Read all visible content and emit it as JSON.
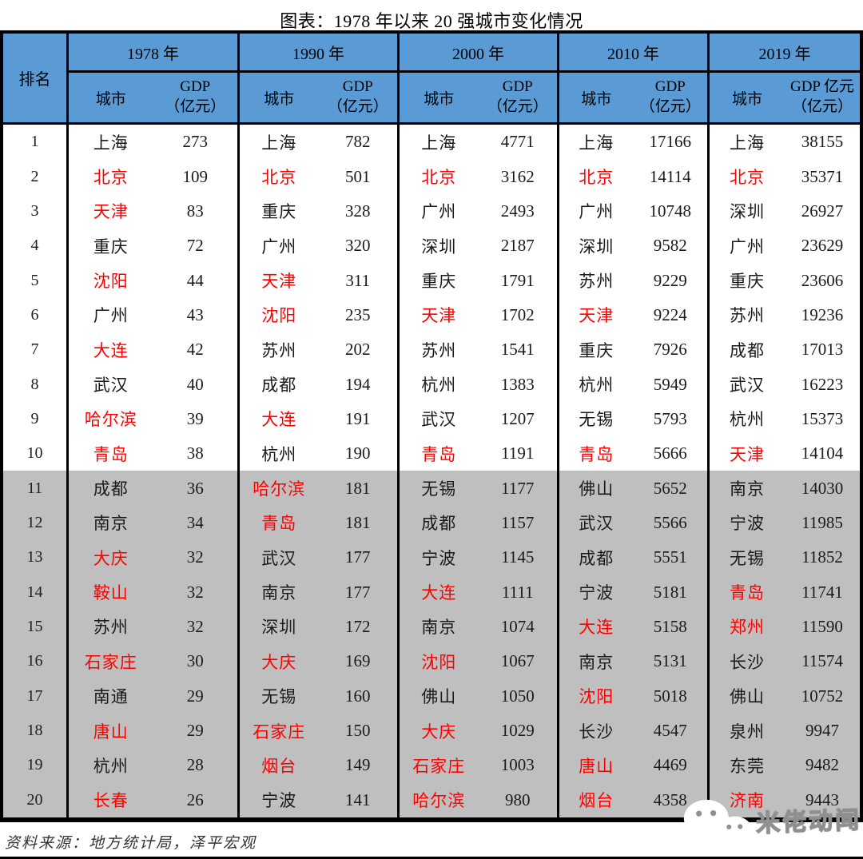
{
  "title": "图表：1978 年以来 20 强城市变化情况",
  "footer": {
    "source": "资料来源：地方统计局，泽平宏观"
  },
  "watermark": {
    "text": "米佬动闻",
    "icon": "wechat-logo"
  },
  "colors": {
    "header_bg": "#5B9BD5",
    "grid_line": "#000000",
    "lower_band_bg": "#BFBFBF",
    "highlight_red": "#FF0000",
    "text_black": "#1a1a1a"
  },
  "table": {
    "rank_header": "排名",
    "city_header": "城市",
    "ranks": [
      "1",
      "2",
      "3",
      "4",
      "5",
      "6",
      "7",
      "8",
      "9",
      "10",
      "11",
      "12",
      "13",
      "14",
      "15",
      "16",
      "17",
      "18",
      "19",
      "20"
    ],
    "year_groups": [
      {
        "year": "1978 年",
        "city_header": "城市",
        "gdp_line1": "GDP",
        "gdp_line2": "（亿元）",
        "rows": [
          {
            "city": "上海",
            "gdp": "273",
            "red": false
          },
          {
            "city": "北京",
            "gdp": "109",
            "red": true
          },
          {
            "city": "天津",
            "gdp": "83",
            "red": true
          },
          {
            "city": "重庆",
            "gdp": "72",
            "red": false
          },
          {
            "city": "沈阳",
            "gdp": "44",
            "red": true
          },
          {
            "city": "广州",
            "gdp": "43",
            "red": false
          },
          {
            "city": "大连",
            "gdp": "42",
            "red": true
          },
          {
            "city": "武汉",
            "gdp": "40",
            "red": false
          },
          {
            "city": "哈尔滨",
            "gdp": "39",
            "red": true
          },
          {
            "city": "青岛",
            "gdp": "38",
            "red": true
          },
          {
            "city": "成都",
            "gdp": "36",
            "red": false
          },
          {
            "city": "南京",
            "gdp": "34",
            "red": false
          },
          {
            "city": "大庆",
            "gdp": "32",
            "red": true
          },
          {
            "city": "鞍山",
            "gdp": "32",
            "red": true
          },
          {
            "city": "苏州",
            "gdp": "32",
            "red": false
          },
          {
            "city": "石家庄",
            "gdp": "30",
            "red": true
          },
          {
            "city": "南通",
            "gdp": "29",
            "red": false
          },
          {
            "city": "唐山",
            "gdp": "29",
            "red": true
          },
          {
            "city": "杭州",
            "gdp": "28",
            "red": false
          },
          {
            "city": "长春",
            "gdp": "26",
            "red": true
          }
        ]
      },
      {
        "year": "1990 年",
        "city_header": "城市",
        "gdp_line1": "GDP",
        "gdp_line2": "（亿元）",
        "rows": [
          {
            "city": "上海",
            "gdp": "782",
            "red": false
          },
          {
            "city": "北京",
            "gdp": "501",
            "red": true
          },
          {
            "city": "重庆",
            "gdp": "328",
            "red": false
          },
          {
            "city": "广州",
            "gdp": "320",
            "red": false
          },
          {
            "city": "天津",
            "gdp": "311",
            "red": true
          },
          {
            "city": "沈阳",
            "gdp": "235",
            "red": true
          },
          {
            "city": "苏州",
            "gdp": "202",
            "red": false
          },
          {
            "city": "成都",
            "gdp": "194",
            "red": false
          },
          {
            "city": "大连",
            "gdp": "191",
            "red": true
          },
          {
            "city": "杭州",
            "gdp": "190",
            "red": false
          },
          {
            "city": "哈尔滨",
            "gdp": "181",
            "red": true
          },
          {
            "city": "青岛",
            "gdp": "181",
            "red": true
          },
          {
            "city": "武汉",
            "gdp": "177",
            "red": false
          },
          {
            "city": "南京",
            "gdp": "177",
            "red": false
          },
          {
            "city": "深圳",
            "gdp": "172",
            "red": false
          },
          {
            "city": "大庆",
            "gdp": "169",
            "red": true
          },
          {
            "city": "无锡",
            "gdp": "160",
            "red": false
          },
          {
            "city": "石家庄",
            "gdp": "150",
            "red": true
          },
          {
            "city": "烟台",
            "gdp": "149",
            "red": true
          },
          {
            "city": "宁波",
            "gdp": "141",
            "red": false
          }
        ]
      },
      {
        "year": "2000 年",
        "city_header": "城市",
        "gdp_line1": "GDP",
        "gdp_line2": "（亿元）",
        "rows": [
          {
            "city": "上海",
            "gdp": "4771",
            "red": false
          },
          {
            "city": "北京",
            "gdp": "3162",
            "red": true
          },
          {
            "city": "广州",
            "gdp": "2493",
            "red": false
          },
          {
            "city": "深圳",
            "gdp": "2187",
            "red": false
          },
          {
            "city": "重庆",
            "gdp": "1791",
            "red": false
          },
          {
            "city": "天津",
            "gdp": "1702",
            "red": true
          },
          {
            "city": "苏州",
            "gdp": "1541",
            "red": false
          },
          {
            "city": "杭州",
            "gdp": "1383",
            "red": false
          },
          {
            "city": "武汉",
            "gdp": "1207",
            "red": false
          },
          {
            "city": "青岛",
            "gdp": "1191",
            "red": true
          },
          {
            "city": "无锡",
            "gdp": "1177",
            "red": false
          },
          {
            "city": "成都",
            "gdp": "1157",
            "red": false
          },
          {
            "city": "宁波",
            "gdp": "1145",
            "red": false
          },
          {
            "city": "大连",
            "gdp": "1111",
            "red": true
          },
          {
            "city": "南京",
            "gdp": "1074",
            "red": false
          },
          {
            "city": "沈阳",
            "gdp": "1067",
            "red": true
          },
          {
            "city": "佛山",
            "gdp": "1050",
            "red": false
          },
          {
            "city": "大庆",
            "gdp": "1029",
            "red": true
          },
          {
            "city": "石家庄",
            "gdp": "1003",
            "red": true
          },
          {
            "city": "哈尔滨",
            "gdp": "980",
            "red": true
          }
        ]
      },
      {
        "year": "2010 年",
        "city_header": "城市",
        "gdp_line1": "GDP",
        "gdp_line2": "（亿元）",
        "rows": [
          {
            "city": "上海",
            "gdp": "17166",
            "red": false
          },
          {
            "city": "北京",
            "gdp": "14114",
            "red": true
          },
          {
            "city": "广州",
            "gdp": "10748",
            "red": false
          },
          {
            "city": "深圳",
            "gdp": "9582",
            "red": false
          },
          {
            "city": "苏州",
            "gdp": "9229",
            "red": false
          },
          {
            "city": "天津",
            "gdp": "9224",
            "red": true
          },
          {
            "city": "重庆",
            "gdp": "7926",
            "red": false
          },
          {
            "city": "杭州",
            "gdp": "5949",
            "red": false
          },
          {
            "city": "无锡",
            "gdp": "5793",
            "red": false
          },
          {
            "city": "青岛",
            "gdp": "5666",
            "red": true
          },
          {
            "city": "佛山",
            "gdp": "5652",
            "red": false
          },
          {
            "city": "武汉",
            "gdp": "5566",
            "red": false
          },
          {
            "city": "成都",
            "gdp": "5551",
            "red": false
          },
          {
            "city": "宁波",
            "gdp": "5181",
            "red": false
          },
          {
            "city": "大连",
            "gdp": "5158",
            "red": true
          },
          {
            "city": "南京",
            "gdp": "5131",
            "red": false
          },
          {
            "city": "沈阳",
            "gdp": "5018",
            "red": true
          },
          {
            "city": "长沙",
            "gdp": "4547",
            "red": false
          },
          {
            "city": "唐山",
            "gdp": "4469",
            "red": true
          },
          {
            "city": "烟台",
            "gdp": "4358",
            "red": true
          }
        ]
      },
      {
        "year": "2019 年",
        "city_header": "城市",
        "gdp_line1": "GDP 亿元",
        "gdp_line2": "（亿元）",
        "rows": [
          {
            "city": "上海",
            "gdp": "38155",
            "red": false
          },
          {
            "city": "北京",
            "gdp": "35371",
            "red": true
          },
          {
            "city": "深圳",
            "gdp": "26927",
            "red": false
          },
          {
            "city": "广州",
            "gdp": "23629",
            "red": false
          },
          {
            "city": "重庆",
            "gdp": "23606",
            "red": false
          },
          {
            "city": "苏州",
            "gdp": "19236",
            "red": false
          },
          {
            "city": "成都",
            "gdp": "17013",
            "red": false
          },
          {
            "city": "武汉",
            "gdp": "16223",
            "red": false
          },
          {
            "city": "杭州",
            "gdp": "15373",
            "red": false
          },
          {
            "city": "天津",
            "gdp": "14104",
            "red": true
          },
          {
            "city": "南京",
            "gdp": "14030",
            "red": false
          },
          {
            "city": "宁波",
            "gdp": "11985",
            "red": false
          },
          {
            "city": "无锡",
            "gdp": "11852",
            "red": false
          },
          {
            "city": "青岛",
            "gdp": "11741",
            "red": true
          },
          {
            "city": "郑州",
            "gdp": "11590",
            "red": true
          },
          {
            "city": "长沙",
            "gdp": "11574",
            "red": false
          },
          {
            "city": "佛山",
            "gdp": "10752",
            "red": false
          },
          {
            "city": "泉州",
            "gdp": "9947",
            "red": false
          },
          {
            "city": "东莞",
            "gdp": "9482",
            "red": false
          },
          {
            "city": "济南",
            "gdp": "9443",
            "red": true
          }
        ]
      }
    ]
  }
}
